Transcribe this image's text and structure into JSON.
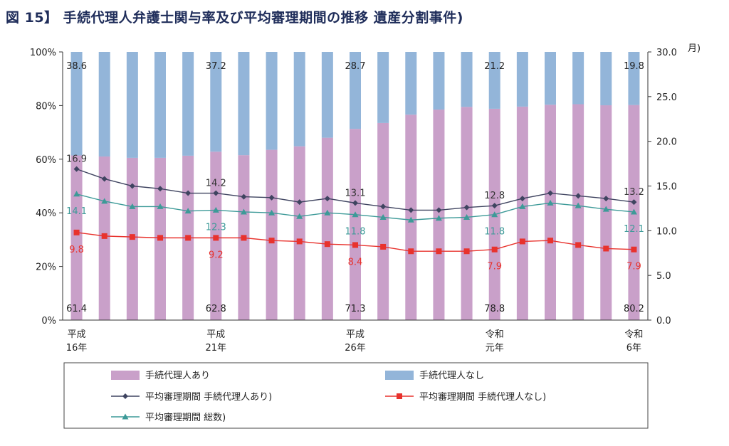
{
  "title": "図 15】 手続代理人弁護士関与率及び平均審理期間の推移 遺産分割事件)",
  "colors": {
    "with_lawyer": "#c9a0c9",
    "without_lawyer": "#93b5d9",
    "avg_with": "#3f4460",
    "avg_without": "#e8322d",
    "avg_total": "#3d9a98",
    "label_red": "#e8322d",
    "label_teal": "#3d9a98"
  },
  "chart_data": {
    "type": "bar",
    "stacked_percent": true,
    "categories": [
      "H16",
      "H17",
      "H18",
      "H19",
      "H20",
      "H21",
      "H22",
      "H23",
      "H24",
      "H25",
      "H26",
      "H27",
      "H28",
      "H29",
      "H30",
      "R1",
      "R2",
      "R3",
      "R4",
      "R5",
      "R6"
    ],
    "x_tick_labels": [
      {
        "index": 0,
        "line1": "平成",
        "line2": "16年"
      },
      {
        "index": 5,
        "line1": "平成",
        "line2": "21年"
      },
      {
        "index": 10,
        "line1": "平成",
        "line2": "26年"
      },
      {
        "index": 15,
        "line1": "令和",
        "line2": "元年"
      },
      {
        "index": 20,
        "line1": "令和",
        "line2": "6年"
      }
    ],
    "left_axis": {
      "ylim": [
        0,
        100
      ],
      "ticks": [
        "0%",
        "20%",
        "40%",
        "60%",
        "80%",
        "100%"
      ]
    },
    "right_axis": {
      "ylim": [
        0,
        30
      ],
      "ticks": [
        "0.0",
        "5.0",
        "10.0",
        "15.0",
        "20.0",
        "25.0",
        "30.0"
      ],
      "unit": "月)"
    },
    "bar_series": [
      {
        "name": "手続代理人あり",
        "values": [
          61.4,
          61,
          60.5,
          60.5,
          61.3,
          62.8,
          61.5,
          63.5,
          64.8,
          68,
          71.3,
          73.5,
          76.6,
          78.5,
          79.5,
          78.8,
          79.6,
          80.3,
          80.5,
          80.1,
          80.2
        ]
      },
      {
        "name": "手続代理人なし",
        "values": [
          38.6,
          39,
          39.5,
          39.5,
          38.7,
          37.2,
          38.5,
          36.5,
          35.2,
          32,
          28.7,
          26.5,
          23.4,
          21.5,
          20.5,
          21.2,
          20.4,
          19.7,
          19.5,
          19.9,
          19.8
        ]
      }
    ],
    "line_series": [
      {
        "name": "平均審理期間 手続代理人あり)",
        "axis": "right",
        "marker": "diamond",
        "values": [
          16.9,
          15.8,
          15.0,
          14.7,
          14.2,
          14.2,
          13.8,
          13.7,
          13.2,
          13.6,
          13.1,
          12.7,
          12.3,
          12.3,
          12.6,
          12.8,
          13.6,
          14.2,
          13.9,
          13.6,
          13.2
        ]
      },
      {
        "name": "平均審理期間 手続代理人なし)",
        "axis": "right",
        "marker": "square",
        "values": [
          9.8,
          9.4,
          9.3,
          9.2,
          9.2,
          9.2,
          9.2,
          8.9,
          8.8,
          8.5,
          8.4,
          8.2,
          7.7,
          7.7,
          7.7,
          7.9,
          8.8,
          8.9,
          8.4,
          8.0,
          7.9
        ]
      },
      {
        "name": "平均審理期間 総数)",
        "axis": "right",
        "marker": "triangle",
        "values": [
          14.1,
          13.3,
          12.7,
          12.7,
          12.2,
          12.3,
          12.1,
          12.0,
          11.6,
          12.0,
          11.8,
          11.5,
          11.2,
          11.4,
          11.5,
          11.8,
          12.7,
          13.1,
          12.8,
          12.4,
          12.1
        ]
      }
    ],
    "data_labels": [
      {
        "series": "手続代理人なし",
        "index": 0,
        "text": "38.6"
      },
      {
        "series": "手続代理人なし",
        "index": 5,
        "text": "37.2"
      },
      {
        "series": "手続代理人なし",
        "index": 10,
        "text": "28.7"
      },
      {
        "series": "手続代理人なし",
        "index": 15,
        "text": "21.2"
      },
      {
        "series": "手続代理人なし",
        "index": 20,
        "text": "19.8"
      },
      {
        "series": "手続代理人あり",
        "index": 0,
        "text": "61.4"
      },
      {
        "series": "手続代理人あり",
        "index": 5,
        "text": "62.8"
      },
      {
        "series": "手続代理人あり",
        "index": 10,
        "text": "71.3"
      },
      {
        "series": "手続代理人あり",
        "index": 15,
        "text": "78.8"
      },
      {
        "series": "手続代理人あり",
        "index": 20,
        "text": "80.2"
      },
      {
        "series": "平均審理期間 手続代理人あり)",
        "index": 0,
        "text": "16.9"
      },
      {
        "series": "平均審理期間 手続代理人あり)",
        "index": 5,
        "text": "14.2"
      },
      {
        "series": "平均審理期間 手続代理人あり)",
        "index": 10,
        "text": "13.1"
      },
      {
        "series": "平均審理期間 手続代理人あり)",
        "index": 15,
        "text": "12.8"
      },
      {
        "series": "平均審理期間 手続代理人あり)",
        "index": 20,
        "text": "13.2"
      },
      {
        "series": "平均審理期間 総数)",
        "index": 0,
        "text": "14.1"
      },
      {
        "series": "平均審理期間 総数)",
        "index": 5,
        "text": "12.3"
      },
      {
        "series": "平均審理期間 総数)",
        "index": 10,
        "text": "11.8"
      },
      {
        "series": "平均審理期間 総数)",
        "index": 15,
        "text": "11.8"
      },
      {
        "series": "平均審理期間 総数)",
        "index": 20,
        "text": "12.1"
      },
      {
        "series": "平均審理期間 手続代理人なし)",
        "index": 0,
        "text": "9.8"
      },
      {
        "series": "平均審理期間 手続代理人なし)",
        "index": 5,
        "text": "9.2"
      },
      {
        "series": "平均審理期間 手続代理人なし)",
        "index": 10,
        "text": "8.4"
      },
      {
        "series": "平均審理期間 手続代理人なし)",
        "index": 15,
        "text": "7.9"
      },
      {
        "series": "平均審理期間 手続代理人なし)",
        "index": 20,
        "text": "7.9"
      }
    ],
    "legend": {
      "placement": "bottom",
      "items": [
        {
          "label": "手続代理人あり",
          "kind": "bar",
          "series": "手続代理人あり"
        },
        {
          "label": "手続代理人なし",
          "kind": "bar",
          "series": "手続代理人なし"
        },
        {
          "label": "平均審理期間 手続代理人あり)",
          "kind": "line",
          "series": "平均審理期間 手続代理人あり)"
        },
        {
          "label": "平均審理期間 手続代理人なし)",
          "kind": "line",
          "series": "平均審理期間 手続代理人なし)"
        },
        {
          "label": "平均審理期間 総数)",
          "kind": "line",
          "series": "平均審理期間 総数)"
        }
      ]
    }
  }
}
